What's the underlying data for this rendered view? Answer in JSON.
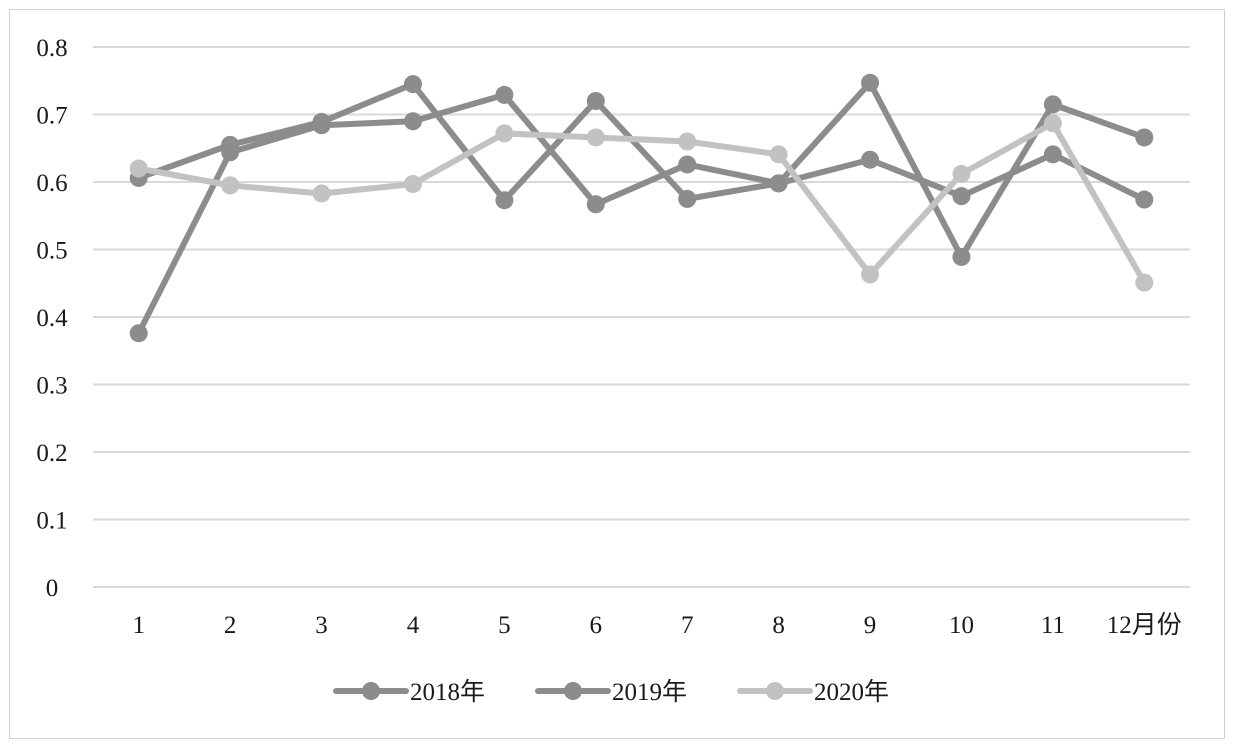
{
  "chart_data": {
    "type": "line",
    "categories": [
      "1",
      "2",
      "3",
      "4",
      "5",
      "6",
      "7",
      "8",
      "9",
      "10",
      "11",
      "12月份"
    ],
    "series": [
      {
        "name": "2018年",
        "color": "#8c8c8c",
        "values": [
          0.376,
          0.644,
          0.684,
          0.69,
          0.729,
          0.567,
          0.626,
          0.598,
          0.747,
          0.489,
          0.715,
          0.666
        ]
      },
      {
        "name": "2019年",
        "color": "#8c8c8c",
        "values": [
          0.606,
          0.655,
          0.689,
          0.745,
          0.573,
          0.72,
          0.575,
          0.598,
          0.633,
          0.579,
          0.641,
          0.574
        ]
      },
      {
        "name": "2020年",
        "color": "#c2c2c2",
        "values": [
          0.62,
          0.595,
          0.583,
          0.597,
          0.672,
          0.666,
          0.66,
          0.641,
          0.463,
          0.612,
          0.687,
          0.451
        ]
      }
    ],
    "y_ticks": [
      "0",
      "0.1",
      "0.2",
      "0.3",
      "0.4",
      "0.5",
      "0.6",
      "0.7",
      "0.8"
    ],
    "ylim": [
      0,
      0.8
    ],
    "grid": true,
    "legend": "bottom"
  }
}
